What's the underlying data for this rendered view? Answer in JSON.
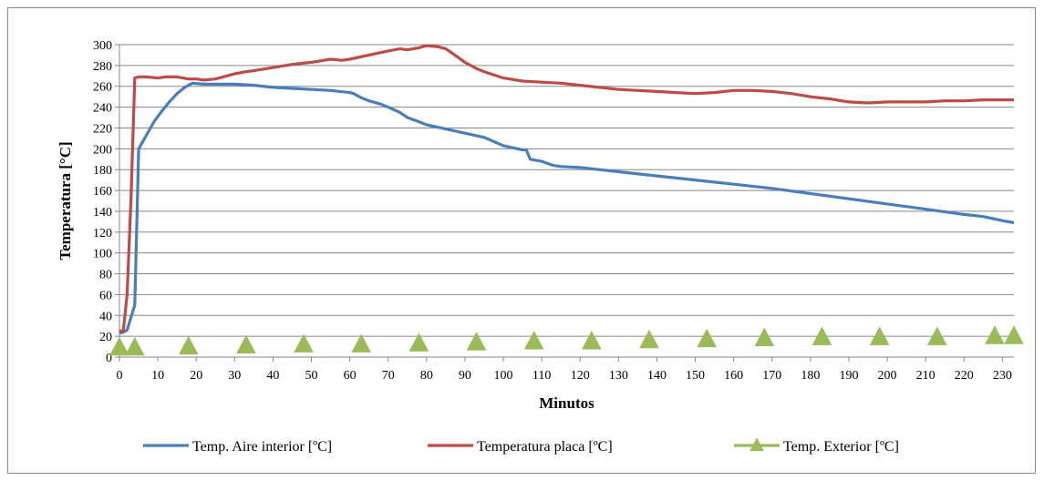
{
  "chart_data": {
    "type": "line",
    "title": "",
    "xlabel": "Minutos",
    "ylabel": "Temperatura [°C]",
    "xlim": [
      0,
      233
    ],
    "ylim": [
      0,
      300
    ],
    "x_ticks": [
      0,
      10,
      20,
      30,
      40,
      50,
      60,
      70,
      80,
      90,
      100,
      110,
      120,
      130,
      140,
      150,
      160,
      170,
      180,
      190,
      200,
      210,
      220,
      230
    ],
    "y_ticks": [
      0,
      20,
      40,
      60,
      80,
      100,
      120,
      140,
      160,
      180,
      200,
      220,
      240,
      260,
      280,
      300
    ],
    "grid": "horizontal",
    "legend_position": "bottom",
    "series": [
      {
        "name": "Temp. Aire interior [ºC]",
        "color": "#4a7ebb",
        "marker": "none",
        "points": [
          [
            0,
            23
          ],
          [
            1,
            24
          ],
          [
            2,
            26
          ],
          [
            4,
            50
          ],
          [
            5,
            200
          ],
          [
            7,
            213
          ],
          [
            9,
            226
          ],
          [
            11,
            236
          ],
          [
            13,
            245
          ],
          [
            15,
            253
          ],
          [
            17,
            259
          ],
          [
            19,
            263
          ],
          [
            22,
            262
          ],
          [
            25,
            262
          ],
          [
            30,
            262
          ],
          [
            35,
            261
          ],
          [
            40,
            259
          ],
          [
            45,
            258
          ],
          [
            50,
            257
          ],
          [
            55,
            256
          ],
          [
            60,
            254
          ],
          [
            61,
            253
          ],
          [
            63,
            249
          ],
          [
            65,
            246
          ],
          [
            68,
            243
          ],
          [
            70,
            240
          ],
          [
            73,
            235
          ],
          [
            75,
            230
          ],
          [
            78,
            226
          ],
          [
            80,
            223
          ],
          [
            85,
            219
          ],
          [
            90,
            215
          ],
          [
            95,
            211
          ],
          [
            100,
            203
          ],
          [
            105,
            199
          ],
          [
            106,
            199
          ],
          [
            107,
            190
          ],
          [
            110,
            188
          ],
          [
            113,
            184
          ],
          [
            115,
            183
          ],
          [
            120,
            182
          ],
          [
            125,
            180
          ],
          [
            130,
            178
          ],
          [
            140,
            174
          ],
          [
            150,
            170
          ],
          [
            160,
            166
          ],
          [
            170,
            162
          ],
          [
            180,
            157
          ],
          [
            190,
            152
          ],
          [
            200,
            147
          ],
          [
            210,
            142
          ],
          [
            220,
            137
          ],
          [
            225,
            135
          ],
          [
            230,
            131
          ],
          [
            233,
            129
          ]
        ]
      },
      {
        "name": "Temperatura placa [ºC]",
        "color": "#be4b48",
        "marker": "none",
        "points": [
          [
            0,
            25
          ],
          [
            1,
            25
          ],
          [
            2,
            60
          ],
          [
            3,
            150
          ],
          [
            4,
            268
          ],
          [
            5,
            269
          ],
          [
            7,
            269
          ],
          [
            10,
            268
          ],
          [
            12,
            269
          ],
          [
            15,
            269
          ],
          [
            18,
            267
          ],
          [
            20,
            267
          ],
          [
            22,
            266
          ],
          [
            25,
            267
          ],
          [
            28,
            270
          ],
          [
            30,
            272
          ],
          [
            33,
            274
          ],
          [
            35,
            275
          ],
          [
            40,
            278
          ],
          [
            45,
            281
          ],
          [
            50,
            283
          ],
          [
            55,
            286
          ],
          [
            58,
            285
          ],
          [
            60,
            286
          ],
          [
            65,
            290
          ],
          [
            70,
            294
          ],
          [
            73,
            296
          ],
          [
            75,
            295
          ],
          [
            78,
            297
          ],
          [
            80,
            299
          ],
          [
            83,
            298
          ],
          [
            85,
            296
          ],
          [
            87,
            291
          ],
          [
            90,
            283
          ],
          [
            93,
            277
          ],
          [
            95,
            274
          ],
          [
            100,
            268
          ],
          [
            105,
            265
          ],
          [
            110,
            264
          ],
          [
            115,
            263
          ],
          [
            120,
            261
          ],
          [
            125,
            259
          ],
          [
            130,
            257
          ],
          [
            135,
            256
          ],
          [
            140,
            255
          ],
          [
            145,
            254
          ],
          [
            150,
            253
          ],
          [
            155,
            254
          ],
          [
            160,
            256
          ],
          [
            165,
            256
          ],
          [
            170,
            255
          ],
          [
            175,
            253
          ],
          [
            180,
            250
          ],
          [
            185,
            248
          ],
          [
            190,
            245
          ],
          [
            195,
            244
          ],
          [
            200,
            245
          ],
          [
            205,
            245
          ],
          [
            210,
            245
          ],
          [
            215,
            246
          ],
          [
            220,
            246
          ],
          [
            225,
            247
          ],
          [
            230,
            247
          ],
          [
            233,
            247
          ]
        ]
      },
      {
        "name": "Temp. Exterior [ºC]",
        "color": "#9bbb59",
        "marker": "triangle",
        "points": [
          [
            0,
            9
          ],
          [
            4,
            9
          ],
          [
            18,
            10
          ],
          [
            33,
            11
          ],
          [
            48,
            12
          ],
          [
            63,
            12
          ],
          [
            78,
            13
          ],
          [
            93,
            14
          ],
          [
            108,
            15
          ],
          [
            123,
            15
          ],
          [
            138,
            16
          ],
          [
            153,
            17
          ],
          [
            168,
            18
          ],
          [
            183,
            19
          ],
          [
            198,
            19
          ],
          [
            213,
            19
          ],
          [
            228,
            20
          ],
          [
            233,
            20
          ]
        ]
      }
    ]
  }
}
